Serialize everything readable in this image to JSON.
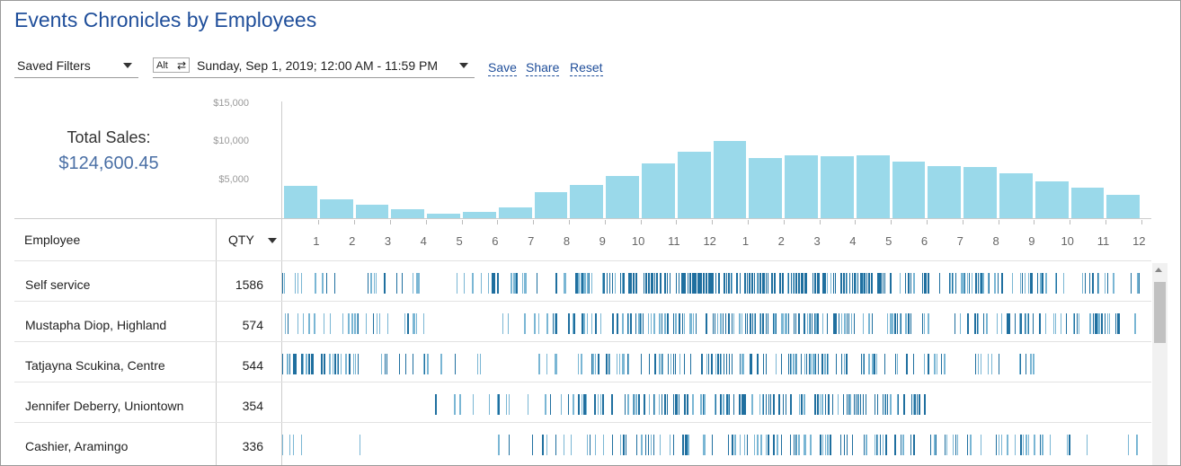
{
  "title": "Events Chronicles by Employees",
  "filters": {
    "saved_filters_label": "Saved Filters",
    "alt_label": "Alt",
    "swap_glyph": "⇄",
    "date_range": "Sunday, Sep 1, 2019; 12:00 AM - 11:59 PM"
  },
  "actions": {
    "save": "Save",
    "share": "Share",
    "reset": "Reset"
  },
  "summary": {
    "label": "Total Sales:",
    "value": "$124,600.45"
  },
  "table": {
    "col_employee": "Employee",
    "col_qty": "QTY",
    "rows": [
      {
        "name": "Self service",
        "qty": "1586",
        "density": [
          0.35,
          0.3,
          0.3,
          0.25,
          0.2,
          0.25,
          0.3,
          0.55,
          0.6,
          0.75,
          0.9,
          0.95,
          0.95,
          0.95,
          0.9,
          0.9,
          0.8,
          0.75,
          0.6,
          0.6,
          0.55,
          0.5,
          0.4,
          0.45
        ]
      },
      {
        "name": "Mustapha Diop, Highland",
        "qty": "574",
        "density": [
          0.35,
          0.35,
          0.3,
          0.3,
          0.0,
          0.0,
          0.15,
          0.3,
          0.3,
          0.45,
          0.5,
          0.6,
          0.75,
          0.75,
          0.7,
          0.65,
          0.45,
          0.5,
          0.4,
          0.3,
          0.5,
          0.45,
          0.45,
          0.35
        ]
      },
      {
        "name": "Tatjayna Scukina, Centre",
        "qty": "544",
        "density": [
          0.75,
          0.6,
          0.4,
          0.45,
          0.35,
          0.15,
          0.0,
          0.2,
          0.25,
          0.35,
          0.55,
          0.65,
          0.6,
          0.55,
          0.5,
          0.5,
          0.45,
          0.35,
          0.3,
          0.3,
          0.35,
          0.0,
          0.0,
          0.0
        ]
      },
      {
        "name": "Jennifer Deberry, Uniontown",
        "qty": "354",
        "density": [
          0.0,
          0.0,
          0.0,
          0.0,
          0.2,
          0.25,
          0.25,
          0.3,
          0.65,
          0.65,
          0.65,
          0.6,
          0.6,
          0.65,
          0.6,
          0.65,
          0.65,
          0.6,
          0.0,
          0.0,
          0.0,
          0.0,
          0.0,
          0.0
        ]
      },
      {
        "name": "Cashier, Aramingo",
        "qty": "336",
        "density": [
          0.12,
          0.0,
          0.1,
          0.0,
          0.0,
          0.05,
          0.25,
          0.25,
          0.35,
          0.4,
          0.45,
          0.5,
          0.5,
          0.5,
          0.45,
          0.45,
          0.45,
          0.4,
          0.35,
          0.3,
          0.3,
          0.25,
          0.2,
          0.15
        ]
      }
    ]
  },
  "chart_data": {
    "type": "bar",
    "categories": [
      "1",
      "2",
      "3",
      "4",
      "5",
      "6",
      "7",
      "8",
      "9",
      "10",
      "11",
      "12",
      "1",
      "2",
      "3",
      "4",
      "5",
      "6",
      "7",
      "8",
      "9",
      "10",
      "11",
      "12"
    ],
    "values": [
      4200,
      2500,
      1800,
      1200,
      600,
      800,
      1400,
      3400,
      4400,
      5500,
      7200,
      8700,
      10100,
      7900,
      8300,
      8100,
      8300,
      7500,
      6800,
      6700,
      5900,
      4900,
      4000,
      3100
    ],
    "y_ticks": [
      "$15,000",
      "$10,000",
      "$5,000"
    ],
    "y_tick_values": [
      15000,
      10000,
      5000
    ],
    "ylim": [
      0,
      15000
    ],
    "colors": {
      "bar": "#9ad9ea",
      "tick_light": "#7ab6d4",
      "tick_dark": "#1f6f9f"
    }
  }
}
